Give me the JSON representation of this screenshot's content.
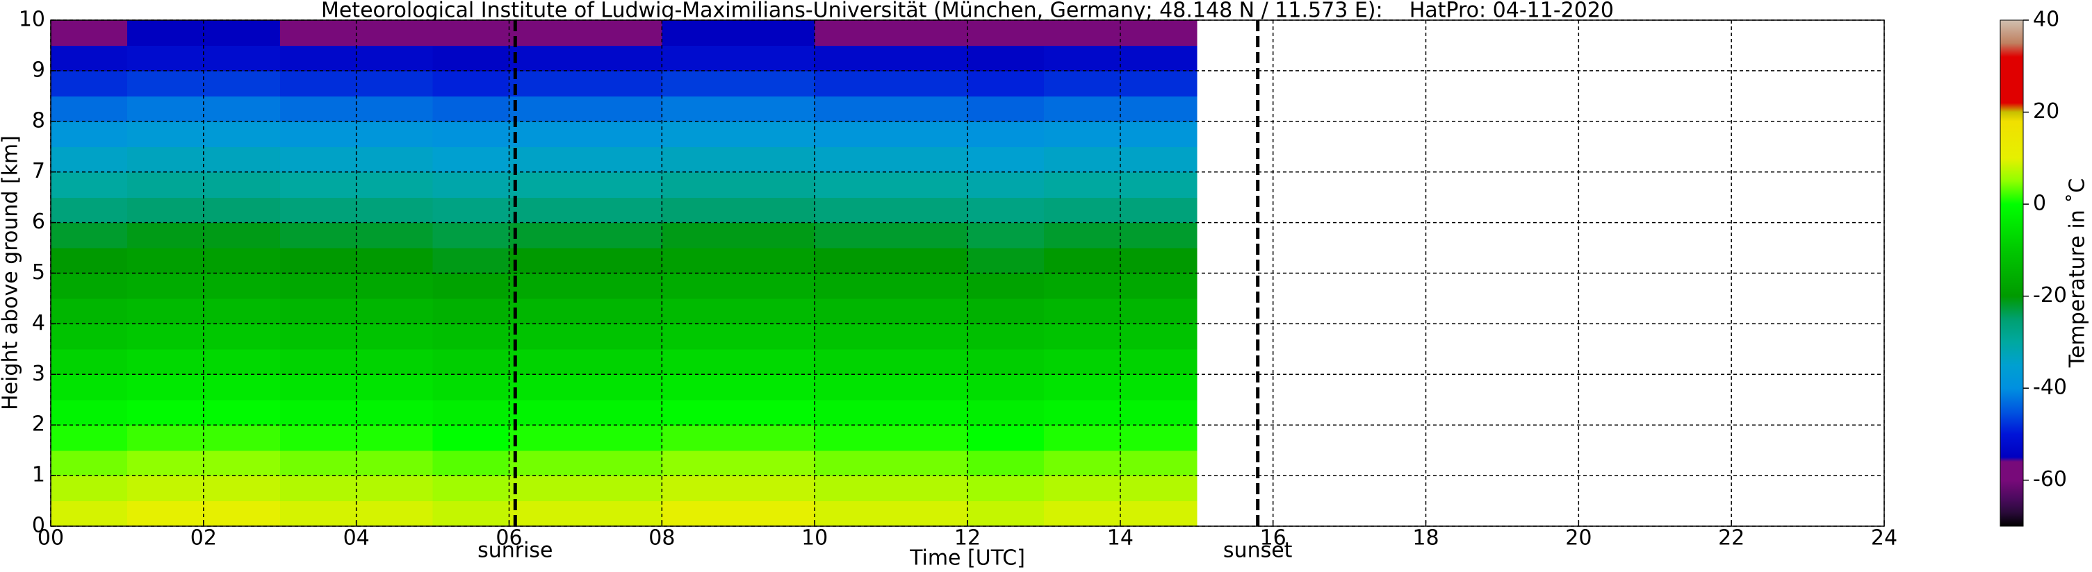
{
  "chart_data": {
    "type": "heatmap",
    "title": "Meteorological Institute of Ludwig-Maximilians-Universität (München, Germany; 48.148 N / 11.573 E):    HatPro: 04-11-2020",
    "x_label": "Time [UTC]",
    "y_label": "Height above ground [km]",
    "colorbar_label": "Temperature in ˚C",
    "xlim": [
      0,
      24
    ],
    "xticks": [
      {
        "value": 0,
        "label": "00"
      },
      {
        "value": 2,
        "label": "02"
      },
      {
        "value": 4,
        "label": "04"
      },
      {
        "value": 6,
        "label": "06"
      },
      {
        "value": 8,
        "label": "08"
      },
      {
        "value": 10,
        "label": "10"
      },
      {
        "value": 12,
        "label": "12"
      },
      {
        "value": 14,
        "label": "14"
      },
      {
        "value": 16,
        "label": "16"
      },
      {
        "value": 18,
        "label": "18"
      },
      {
        "value": 20,
        "label": "20"
      },
      {
        "value": 22,
        "label": "22"
      },
      {
        "value": 24,
        "label": "24"
      }
    ],
    "ylim": [
      0,
      10
    ],
    "yticks": [
      0,
      1,
      2,
      3,
      4,
      5,
      6,
      7,
      8,
      9,
      10
    ],
    "grid": true,
    "clim": [
      -70,
      40
    ],
    "cticks": [
      -60,
      -40,
      -20,
      0,
      20,
      40
    ],
    "colorscale": [
      {
        "value": -70,
        "color": "#000000"
      },
      {
        "value": -67,
        "color": "#2a0a3a"
      },
      {
        "value": -64,
        "color": "#4b0a5e"
      },
      {
        "value": -60,
        "color": "#780a7a"
      },
      {
        "value": -56,
        "color": "#780a7a"
      },
      {
        "value": -55,
        "color": "#0000c0"
      },
      {
        "value": -50,
        "color": "#0014d8"
      },
      {
        "value": -45,
        "color": "#0056e0"
      },
      {
        "value": -40,
        "color": "#0090e0"
      },
      {
        "value": -35,
        "color": "#00a0d0"
      },
      {
        "value": -30,
        "color": "#00a8a0"
      },
      {
        "value": -25,
        "color": "#00a070"
      },
      {
        "value": -20,
        "color": "#009a00"
      },
      {
        "value": -10,
        "color": "#00c800"
      },
      {
        "value": 0,
        "color": "#00ff00"
      },
      {
        "value": 5,
        "color": "#90ff00"
      },
      {
        "value": 10,
        "color": "#e6f000"
      },
      {
        "value": 18,
        "color": "#f0e000"
      },
      {
        "value": 20,
        "color": "#c8c000"
      },
      {
        "value": 22,
        "color": "#e00000"
      },
      {
        "value": 32,
        "color": "#e00000"
      },
      {
        "value": 35,
        "color": "#c08060"
      },
      {
        "value": 40,
        "color": "#d0c0b0"
      }
    ],
    "x_bins": [
      0,
      1,
      2,
      3,
      4,
      5,
      6,
      7,
      8,
      9,
      10,
      11,
      12,
      13,
      14,
      15
    ],
    "y_bins": [
      0,
      0.5,
      1,
      1.5,
      2,
      2.5,
      3,
      3.5,
      4,
      4.5,
      5,
      5.5,
      6,
      6.5,
      7,
      7.5,
      8,
      8.5,
      9,
      9.5,
      10
    ],
    "z": [
      [
        9,
        10,
        10,
        9,
        9,
        8,
        9,
        9,
        10,
        10,
        9,
        9,
        8,
        9,
        9
      ],
      [
        7,
        8,
        8,
        7,
        7,
        6,
        7,
        7,
        8,
        8,
        7,
        7,
        6,
        7,
        7
      ],
      [
        4,
        5,
        5,
        4,
        4,
        3,
        4,
        4,
        5,
        5,
        4,
        4,
        3,
        4,
        4
      ],
      [
        1,
        2,
        2,
        1,
        1,
        0,
        1,
        1,
        2,
        2,
        1,
        1,
        0,
        1,
        1
      ],
      [
        -2,
        -1,
        -1,
        -2,
        -2,
        -3,
        -2,
        -2,
        -1,
        -1,
        -2,
        -2,
        -3,
        -2,
        -2
      ],
      [
        -5,
        -4,
        -4,
        -5,
        -5,
        -6,
        -5,
        -5,
        -4,
        -4,
        -5,
        -5,
        -6,
        -5,
        -5
      ],
      [
        -8,
        -7,
        -7,
        -8,
        -8,
        -9,
        -8,
        -8,
        -7,
        -7,
        -8,
        -8,
        -9,
        -8,
        -8
      ],
      [
        -11,
        -10,
        -10,
        -11,
        -11,
        -12,
        -11,
        -11,
        -10,
        -10,
        -11,
        -11,
        -12,
        -11,
        -11
      ],
      [
        -14,
        -13,
        -13,
        -14,
        -14,
        -15,
        -14,
        -14,
        -13,
        -13,
        -14,
        -14,
        -15,
        -14,
        -14
      ],
      [
        -17,
        -16,
        -16,
        -17,
        -17,
        -18,
        -17,
        -17,
        -16,
        -16,
        -17,
        -17,
        -18,
        -17,
        -17
      ],
      [
        -20,
        -19,
        -19,
        -20,
        -20,
        -21,
        -20,
        -20,
        -19,
        -19,
        -20,
        -20,
        -21,
        -20,
        -20
      ],
      [
        -22,
        -21,
        -21,
        -22,
        -22,
        -23,
        -22,
        -22,
        -21,
        -21,
        -22,
        -22,
        -23,
        -22,
        -22
      ],
      [
        -26,
        -25,
        -25,
        -26,
        -26,
        -27,
        -26,
        -26,
        -25,
        -25,
        -26,
        -26,
        -27,
        -26,
        -26
      ],
      [
        -30,
        -29,
        -29,
        -30,
        -30,
        -31,
        -30,
        -30,
        -29,
        -29,
        -30,
        -30,
        -31,
        -30,
        -30
      ],
      [
        -34,
        -33,
        -33,
        -34,
        -34,
        -35,
        -34,
        -34,
        -33,
        -33,
        -34,
        -34,
        -35,
        -34,
        -34
      ],
      [
        -38,
        -37,
        -37,
        -38,
        -38,
        -39,
        -38,
        -38,
        -37,
        -37,
        -38,
        -38,
        -39,
        -38,
        -38
      ],
      [
        -43,
        -42,
        -42,
        -43,
        -43,
        -44,
        -43,
        -43,
        -42,
        -42,
        -43,
        -43,
        -44,
        -43,
        -43
      ],
      [
        -48,
        -47,
        -47,
        -48,
        -48,
        -49,
        -48,
        -48,
        -47,
        -47,
        -48,
        -48,
        -49,
        -48,
        -48
      ],
      [
        -53,
        -52,
        -52,
        -53,
        -53,
        -54,
        -53,
        -53,
        -52,
        -52,
        -53,
        -53,
        -54,
        -53,
        -53
      ],
      [
        -56,
        -55,
        -55,
        -56,
        -56,
        -57,
        -56,
        -56,
        -55,
        -55,
        -56,
        -56,
        -57,
        -56,
        -56
      ]
    ],
    "markers": [
      {
        "label": "sunrise",
        "x": 6.08
      },
      {
        "label": "sunset",
        "x": 15.8
      }
    ]
  }
}
